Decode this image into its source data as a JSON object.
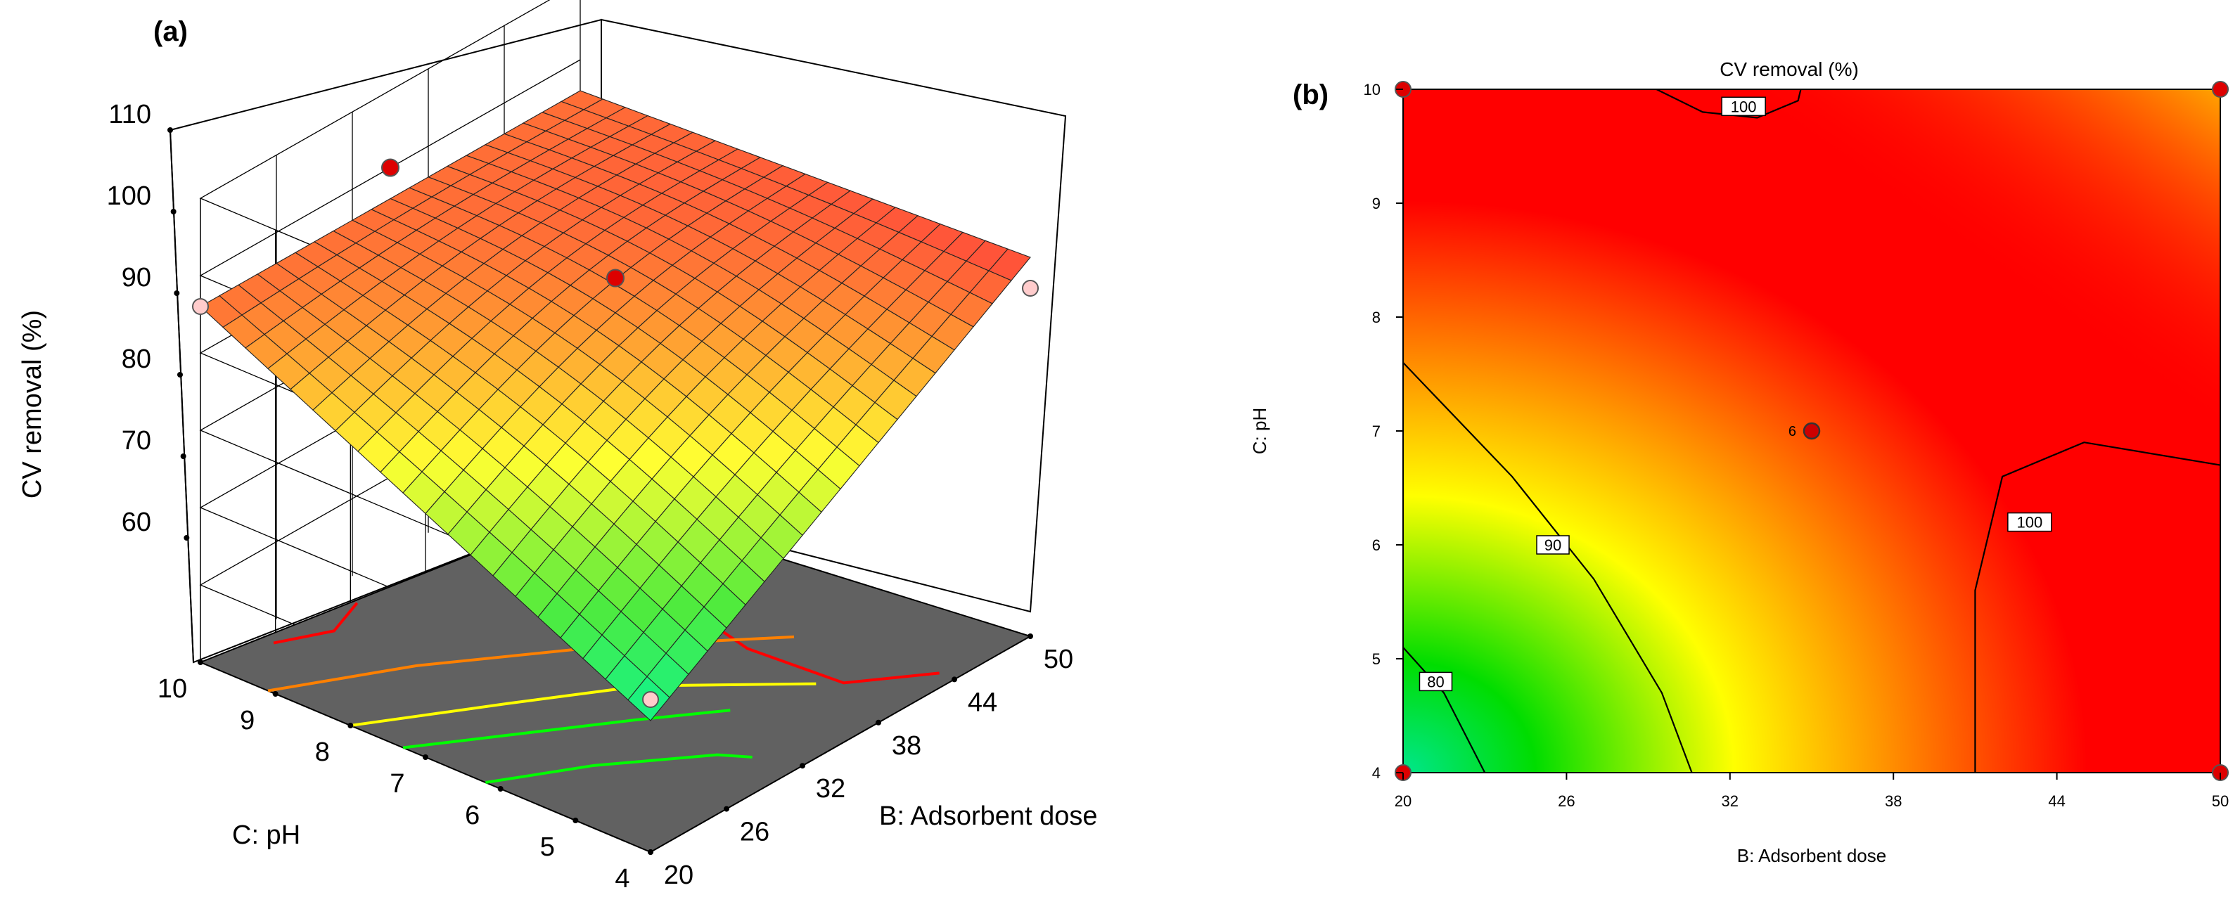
{
  "figure": {
    "panels": [
      {
        "label": "(a)"
      },
      {
        "label": "(b)"
      }
    ]
  },
  "chart_data": [
    {
      "type": "surface3d",
      "panel": "(a)",
      "title": "",
      "zlabel": "CV removal (%)",
      "xlabel": "B: Adsorbent dose",
      "ylabel": "C: pH",
      "x_ticks": [
        20,
        26,
        32,
        38,
        44,
        50
      ],
      "y_ticks": [
        4,
        5,
        6,
        7,
        8,
        9,
        10
      ],
      "z_ticks": [
        60,
        70,
        80,
        90,
        100,
        110
      ],
      "xlim": [
        20,
        50
      ],
      "ylim": [
        4,
        10
      ],
      "zlim": [
        50,
        110
      ],
      "surface_corners": [
        {
          "x": 20,
          "y": 4,
          "z": 67
        },
        {
          "x": 20,
          "y": 10,
          "z": 96
        },
        {
          "x": 50,
          "y": 4,
          "z": 99
        },
        {
          "x": 50,
          "y": 10,
          "z": 96
        }
      ],
      "design_points": [
        {
          "x": 35,
          "y": 7,
          "z": 98
        },
        {
          "x": 35,
          "y": 10,
          "z": 100
        },
        {
          "x": 20,
          "y": 10,
          "z": 96
        },
        {
          "x": 50,
          "y": 4,
          "z": 95
        }
      ],
      "floor_contours": [
        {
          "level": 100,
          "color": "#ff0000"
        },
        {
          "level": 95,
          "color": "#ff8000"
        },
        {
          "level": 90,
          "color": "#ffff00"
        },
        {
          "level": 80,
          "color": "#00ff00"
        }
      ]
    },
    {
      "type": "heatmap",
      "panel": "(b)",
      "title": "CV removal (%)",
      "xlabel": "B: Adsorbent dose",
      "ylabel": "C: pH",
      "x_ticks": [
        20,
        26,
        32,
        38,
        44,
        50
      ],
      "y_ticks": [
        4,
        5,
        6,
        7,
        8,
        9,
        10
      ],
      "xlim": [
        20,
        50
      ],
      "ylim": [
        4,
        10
      ],
      "contours": [
        {
          "level": 80,
          "label": "80"
        },
        {
          "level": 90,
          "label": "90"
        },
        {
          "level": 100,
          "label": "100"
        },
        {
          "level": 100,
          "label": "100"
        }
      ],
      "center_point": {
        "x": 35,
        "y": 7,
        "label": "6"
      },
      "design_points": [
        {
          "x": 20,
          "y": 10
        },
        {
          "x": 50,
          "y": 10
        },
        {
          "x": 20,
          "y": 4
        },
        {
          "x": 50,
          "y": 4
        }
      ],
      "colormap": [
        "#00e68c",
        "#00dd00",
        "#ffff00",
        "#ff8000",
        "#ff0000"
      ]
    }
  ]
}
